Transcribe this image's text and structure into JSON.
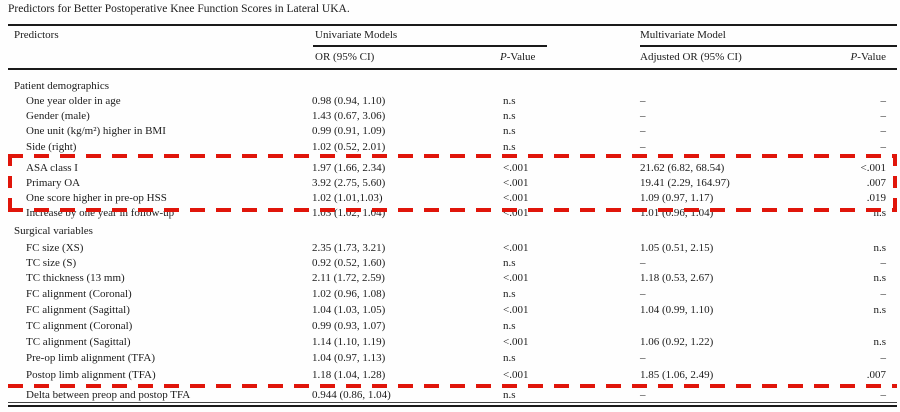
{
  "title": "Predictors for Better Postoperative Knee Function Scores in Lateral UKA.",
  "annotations": {
    "color": "#e0150a"
  },
  "table": {
    "col_headers": {
      "predictors": "Predictors",
      "univariate_group": "Univariate Models",
      "multivariate_group": "Multivariate Model",
      "or_univariate": "OR (95% CI)",
      "adjusted_or": "Adjusted OR (95% CI)",
      "pvalue_italic": "P",
      "pvalue_rest": "-Value"
    },
    "rows": [
      {
        "type": "section",
        "label": "Patient demographics"
      },
      {
        "type": "data",
        "label": "One year older in age",
        "or1": "0.98 (0.94, 1.10)",
        "p1": "n.s",
        "or2": "–",
        "p2": "–"
      },
      {
        "type": "data",
        "label": "Gender (male)",
        "or1": "1.43 (0.67, 3.06)",
        "p1": "n.s",
        "or2": "–",
        "p2": "–"
      },
      {
        "type": "data",
        "label": "One unit (kg/m²) higher in BMI",
        "or1": "0.99 (0.91, 1.09)",
        "p1": "n.s",
        "or2": "–",
        "p2": "–"
      },
      {
        "type": "data",
        "label": "Side (right)",
        "or1": "1.02 (0.52, 2.01)",
        "p1": "n.s",
        "or2": "–",
        "p2": "–"
      },
      {
        "type": "data",
        "label": "ASA class I",
        "or1": "1.97 (1.66, 2.34)",
        "p1": "<.001",
        "or2": "21.62 (6.82, 68.54)",
        "p2": "<.001"
      },
      {
        "type": "data",
        "label": "Primary OA",
        "or1": "3.92 (2.75, 5.60)",
        "p1": "<.001",
        "or2": "19.41 (2.29, 164.97)",
        "p2": ".007"
      },
      {
        "type": "data",
        "label": "One score higher in pre-op HSS",
        "or1": "1.02 (1.01,1.03)",
        "p1": "<.001",
        "or2": "1.09 (0.97, 1.17)",
        "p2": ".019"
      },
      {
        "type": "data",
        "label": "Increase by one year in follow-up",
        "or1": "1.03 (1.02, 1.04)",
        "p1": "<.001",
        "or2": "1.01 (0.96, 1.04)",
        "p2": "n.s"
      },
      {
        "type": "section",
        "label": "Surgical variables"
      },
      {
        "type": "data",
        "label": "FC size (XS)",
        "or1": "2.35 (1.73, 3.21)",
        "p1": "<.001",
        "or2": "1.05 (0.51, 2.15)",
        "p2": "n.s"
      },
      {
        "type": "data",
        "label": "TC size (S)",
        "or1": "0.92 (0.52, 1.60)",
        "p1": "n.s",
        "or2": "–",
        "p2": "–"
      },
      {
        "type": "data",
        "label": "TC thickness (13 mm)",
        "or1": "2.11 (1.72, 2.59)",
        "p1": "<.001",
        "or2": "1.18 (0.53, 2.67)",
        "p2": "n.s"
      },
      {
        "type": "data",
        "label": "FC alignment (Coronal)",
        "or1": "1.02 (0.96, 1.08)",
        "p1": "n.s",
        "or2": "–",
        "p2": "–"
      },
      {
        "type": "data",
        "label": "FC alignment (Sagittal)",
        "or1": "1.04 (1.03, 1.05)",
        "p1": "<.001",
        "or2": "1.04 (0.99, 1.10)",
        "p2": "n.s"
      },
      {
        "type": "data",
        "label": "TC alignment (Coronal)",
        "or1": "0.99 (0.93, 1.07)",
        "p1": "n.s",
        "or2": "",
        "p2": ""
      },
      {
        "type": "data",
        "label": "TC alignment (Sagittal)",
        "or1": "1.14 (1.10, 1.19)",
        "p1": "<.001",
        "or2": "1.06 (0.92, 1.22)",
        "p2": "n.s"
      },
      {
        "type": "data",
        "label": "Pre-op limb alignment (TFA)",
        "or1": "1.04 (0.97, 1.13)",
        "p1": "n.s",
        "or2": "–",
        "p2": "–"
      },
      {
        "type": "data",
        "label": "Postop limb alignment (TFA)",
        "or1": "1.18 (1.04, 1.28)",
        "p1": "<.001",
        "or2": "1.85 (1.06, 2.49)",
        "p2": ".007"
      },
      {
        "type": "data",
        "label": "Delta between preop and postop TFA",
        "or1": "0.944 (0.86, 1.04)",
        "p1": "n.s",
        "or2": "–",
        "p2": "–"
      }
    ]
  }
}
